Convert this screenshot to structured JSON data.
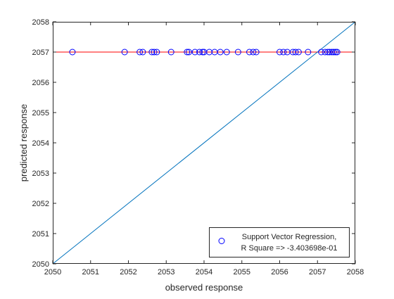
{
  "chart_data": {
    "type": "scatter",
    "title": "",
    "xlabel": "observed response",
    "ylabel": "predicted response",
    "xlim": [
      2050,
      2058
    ],
    "ylim": [
      2050,
      2058
    ],
    "xticks": [
      "2050",
      "2051",
      "2052",
      "2053",
      "2054",
      "2055",
      "2056",
      "2057",
      "2058"
    ],
    "yticks": [
      "2050",
      "2051",
      "2052",
      "2053",
      "2054",
      "2055",
      "2056",
      "2057",
      "2058"
    ],
    "grid": false,
    "legend_position": "bottom-right",
    "series": [
      {
        "name": "Support Vector Regression,",
        "name_line2": "R Square => -3.403698e-01",
        "marker": "open-circle",
        "color": "#0000ff",
        "points": [
          [
            2050.52,
            2057.0
          ],
          [
            2051.9,
            2057.0
          ],
          [
            2052.3,
            2057.0
          ],
          [
            2052.38,
            2057.0
          ],
          [
            2052.62,
            2057.0
          ],
          [
            2052.68,
            2057.0
          ],
          [
            2052.75,
            2057.0
          ],
          [
            2053.13,
            2057.0
          ],
          [
            2053.55,
            2057.0
          ],
          [
            2053.6,
            2057.0
          ],
          [
            2053.76,
            2057.0
          ],
          [
            2053.88,
            2057.0
          ],
          [
            2053.96,
            2057.0
          ],
          [
            2054.0,
            2057.0
          ],
          [
            2054.14,
            2057.0
          ],
          [
            2054.28,
            2057.0
          ],
          [
            2054.43,
            2057.0
          ],
          [
            2054.6,
            2057.0
          ],
          [
            2054.9,
            2057.0
          ],
          [
            2055.2,
            2057.0
          ],
          [
            2055.3,
            2057.0
          ],
          [
            2055.38,
            2057.0
          ],
          [
            2056.0,
            2057.0
          ],
          [
            2056.1,
            2057.0
          ],
          [
            2056.2,
            2057.0
          ],
          [
            2056.35,
            2057.0
          ],
          [
            2056.42,
            2057.0
          ],
          [
            2056.5,
            2057.0
          ],
          [
            2056.75,
            2057.0
          ],
          [
            2057.1,
            2057.0
          ],
          [
            2057.2,
            2057.0
          ],
          [
            2057.27,
            2057.0
          ],
          [
            2057.32,
            2057.0
          ],
          [
            2057.38,
            2057.0
          ],
          [
            2057.43,
            2057.0
          ],
          [
            2057.48,
            2057.0
          ],
          [
            2057.52,
            2057.0
          ]
        ]
      }
    ],
    "lines": [
      {
        "kind": "constant-prediction",
        "color": "#ff0000",
        "points": [
          [
            2050,
            2057.0
          ],
          [
            2058,
            2057.0
          ]
        ]
      },
      {
        "kind": "identity",
        "color": "#0072bd",
        "points": [
          [
            2050,
            2050
          ],
          [
            2058,
            2058
          ]
        ]
      }
    ]
  }
}
